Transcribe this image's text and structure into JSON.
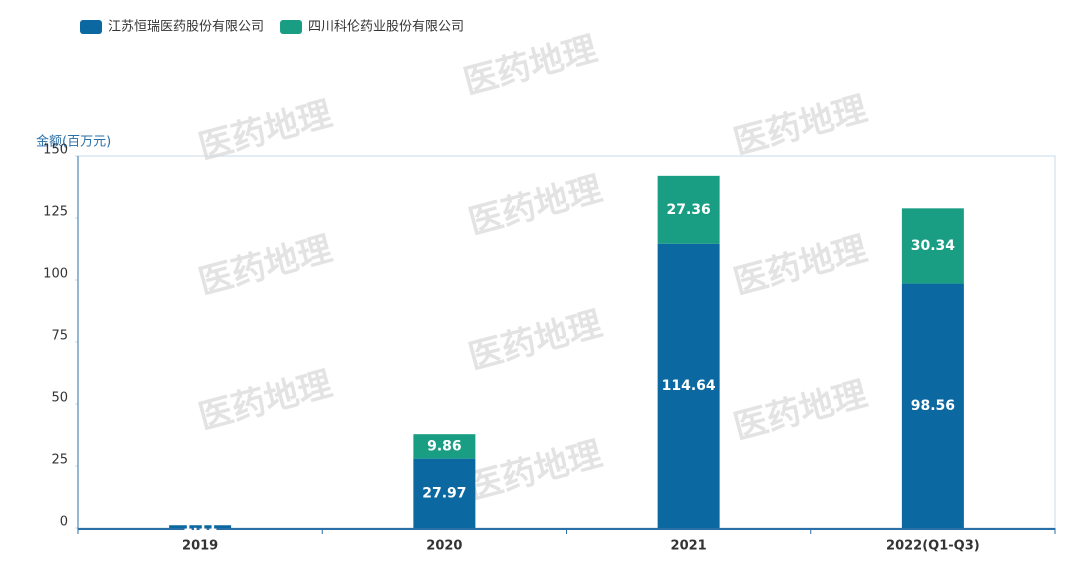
{
  "chart_data": {
    "type": "stacked-bar",
    "y_label": "金额(百万元)",
    "watermark": "医药地理",
    "categories": [
      "2019",
      "2020",
      "2021",
      "2022(Q1-Q3)"
    ],
    "series": [
      {
        "name": "江苏恒瑞医药股份有限公司",
        "color": "#0b68a0",
        "values": [
          1.11,
          27.97,
          114.64,
          98.56
        ]
      },
      {
        "name": "四川科伦药业股份有限公司",
        "color": "#1a9e83",
        "values": [
          null,
          9.86,
          27.36,
          30.34
        ]
      }
    ],
    "ylim": [
      0,
      150
    ],
    "yticks": [
      0,
      25,
      50,
      75,
      100,
      125,
      150
    ]
  }
}
